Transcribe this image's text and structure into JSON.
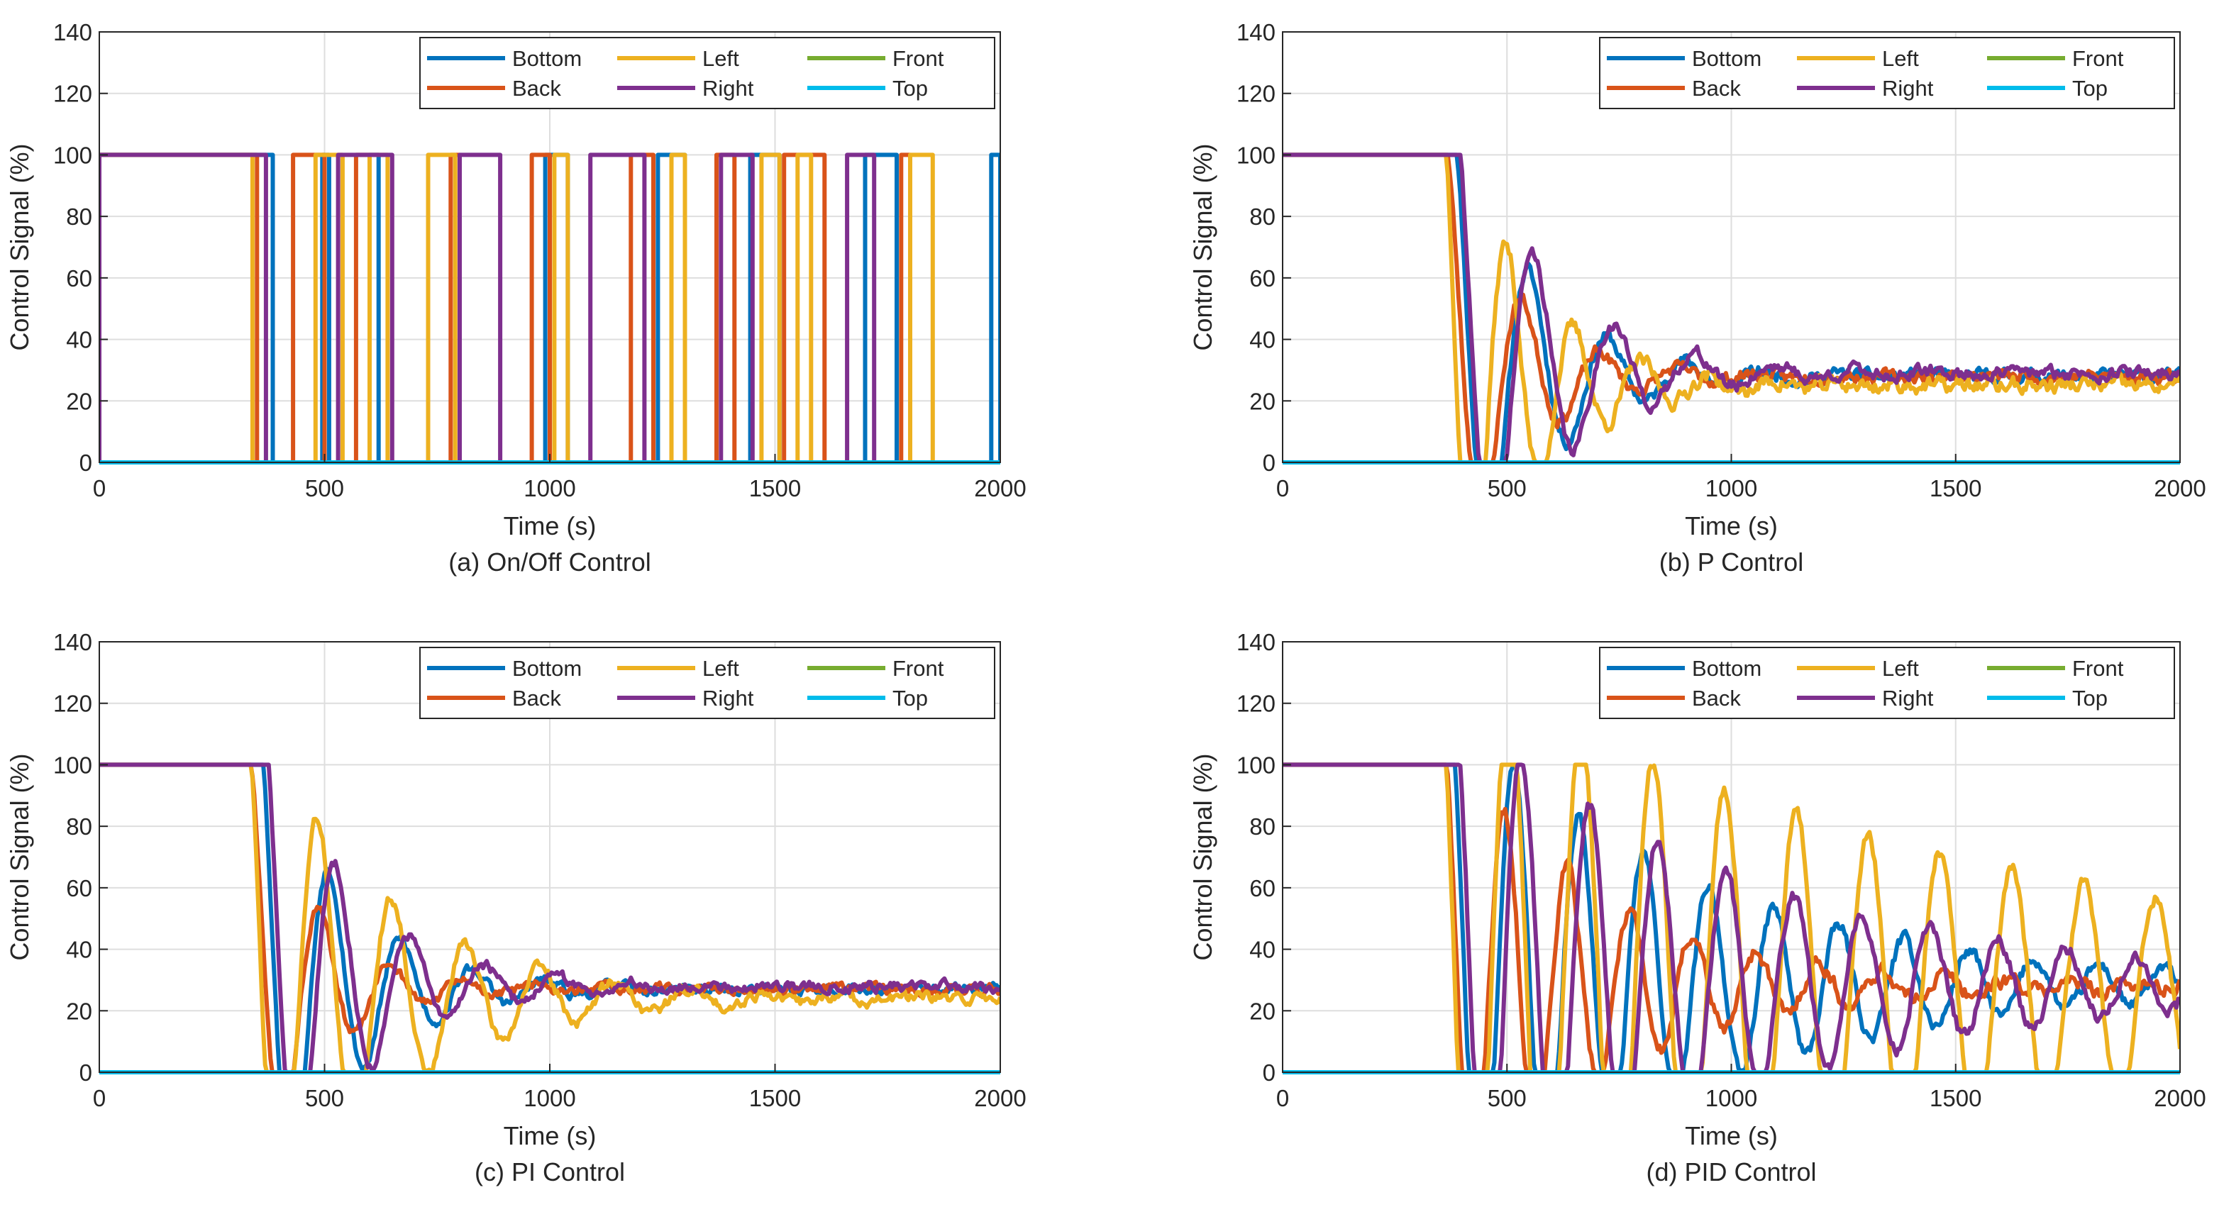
{
  "chart_data": [
    {
      "type": "line",
      "id": "a",
      "caption": "(a) On/Off Control",
      "xlabel": "Time (s)",
      "ylabel": "Control Signal (%)",
      "xlim": [
        0,
        2000
      ],
      "ylim": [
        0,
        140
      ],
      "xticks": [
        "0",
        "500",
        "1000",
        "1500",
        "2000"
      ],
      "yticks": [
        "0",
        "20",
        "40",
        "60",
        "80",
        "100",
        "120",
        "140"
      ],
      "grid": true,
      "legend_position": "top-right",
      "legend_columns": 3,
      "model": "onoff",
      "series": [
        {
          "name": "Bottom",
          "color": "#0072BD",
          "intervals": [
            [
              0,
              385
            ],
            [
              495,
              510
            ],
            [
              600,
              620
            ],
            [
              990,
              1040
            ],
            [
              1240,
              1300
            ],
            [
              1445,
              1510
            ],
            [
              1700,
              1770
            ],
            [
              1980,
              2000
            ]
          ]
        },
        {
          "name": "Back",
          "color": "#D95319",
          "intervals": [
            [
              0,
              350
            ],
            [
              430,
              500
            ],
            [
              570,
              600
            ],
            [
              780,
              800
            ],
            [
              960,
              1000
            ],
            [
              1180,
              1230
            ],
            [
              1370,
              1410
            ],
            [
              1520,
              1610
            ],
            [
              1780,
              1800
            ]
          ]
        },
        {
          "name": "Left",
          "color": "#EDB120",
          "intervals": [
            [
              0,
              340
            ],
            [
              480,
              540
            ],
            [
              600,
              640
            ],
            [
              730,
              790
            ],
            [
              1010,
              1040
            ],
            [
              1270,
              1300
            ],
            [
              1470,
              1510
            ],
            [
              1550,
              1580
            ],
            [
              1800,
              1850
            ]
          ]
        },
        {
          "name": "Right",
          "color": "#7E2F8E",
          "intervals": [
            [
              0,
              370
            ],
            [
              530,
              650
            ],
            [
              800,
              890
            ],
            [
              1090,
              1210
            ],
            [
              1380,
              1450
            ],
            [
              1660,
              1720
            ]
          ]
        },
        {
          "name": "Front",
          "color": "#77AC30",
          "values_const": 0
        },
        {
          "name": "Top",
          "color": "#00BCEB",
          "values_const": 0
        }
      ]
    },
    {
      "type": "line",
      "id": "b",
      "caption": "(b) P Control",
      "xlabel": "Time (s)",
      "ylabel": "Control Signal (%)",
      "xlim": [
        0,
        2000
      ],
      "ylim": [
        0,
        140
      ],
      "xticks": [
        "0",
        "500",
        "1000",
        "1500",
        "2000"
      ],
      "yticks": [
        "0",
        "20",
        "40",
        "60",
        "80",
        "100",
        "120",
        "140"
      ],
      "grid": true,
      "legend_position": "top-right",
      "legend_columns": 3,
      "model": "damped",
      "series": [
        {
          "name": "Bottom",
          "color": "#0072BD",
          "t0": 375,
          "ss": 28,
          "amp": 90,
          "tau": 180,
          "period": 175,
          "noise": 2.5,
          "seed": 11
        },
        {
          "name": "Back",
          "color": "#D95319",
          "t0": 360,
          "ss": 28,
          "amp": 80,
          "tau": 150,
          "period": 175,
          "noise": 2.5,
          "seed": 23
        },
        {
          "name": "Left",
          "color": "#EDB120",
          "t0": 350,
          "ss": 25,
          "amp": 110,
          "tau": 170,
          "period": 150,
          "noise": 3,
          "seed": 37
        },
        {
          "name": "Right",
          "color": "#7E2F8E",
          "t0": 380,
          "ss": 29,
          "amp": 95,
          "tau": 200,
          "period": 180,
          "noise": 2.5,
          "seed": 41
        },
        {
          "name": "Front",
          "color": "#77AC30",
          "values_const": 0
        },
        {
          "name": "Top",
          "color": "#00BCEB",
          "values_const": 0
        }
      ]
    },
    {
      "type": "line",
      "id": "c",
      "caption": "(c) PI Control",
      "xlabel": "Time (s)",
      "ylabel": "Control Signal (%)",
      "xlim": [
        0,
        2000
      ],
      "ylim": [
        0,
        140
      ],
      "xticks": [
        "0",
        "500",
        "1000",
        "1500",
        "2000"
      ],
      "yticks": [
        "0",
        "20",
        "40",
        "60",
        "80",
        "100",
        "120",
        "140"
      ],
      "grid": true,
      "legend_position": "top-right",
      "legend_columns": 3,
      "model": "damped",
      "series": [
        {
          "name": "Bottom",
          "color": "#0072BD",
          "t0": 350,
          "ss": 27,
          "amp": 95,
          "tau": 180,
          "period": 160,
          "noise": 2,
          "seed": 53
        },
        {
          "name": "Back",
          "color": "#D95319",
          "t0": 330,
          "ss": 27,
          "amp": 80,
          "tau": 140,
          "period": 160,
          "noise": 2,
          "seed": 61
        },
        {
          "name": "Left",
          "color": "#EDB120",
          "t0": 320,
          "ss": 24,
          "amp": 105,
          "tau": 280,
          "period": 165,
          "noise": 2.2,
          "seed": 71
        },
        {
          "name": "Right",
          "color": "#7E2F8E",
          "t0": 360,
          "ss": 28,
          "amp": 95,
          "tau": 190,
          "period": 165,
          "noise": 2,
          "seed": 83
        },
        {
          "name": "Front",
          "color": "#77AC30",
          "values_const": 0
        },
        {
          "name": "Top",
          "color": "#00BCEB",
          "values_const": 0
        }
      ]
    },
    {
      "type": "line",
      "id": "d",
      "caption": "(d) PID Control",
      "xlabel": "Time (s)",
      "ylabel": "Control Signal (%)",
      "xlim": [
        0,
        2000
      ],
      "ylim": [
        0,
        140
      ],
      "xticks": [
        "0",
        "500",
        "1000",
        "1500",
        "2000"
      ],
      "yticks": [
        "0",
        "20",
        "40",
        "60",
        "80",
        "100",
        "120",
        "140"
      ],
      "grid": true,
      "legend_position": "top-right",
      "legend_columns": 3,
      "model": "damped",
      "series": [
        {
          "name": "Bottom",
          "color": "#0072BD",
          "t0": 370,
          "ss": 28,
          "amp": 95,
          "tau": 550,
          "period": 145,
          "noise": 2.5,
          "seed": 97
        },
        {
          "name": "Back",
          "color": "#D95319",
          "t0": 355,
          "ss": 28,
          "amp": 85,
          "tau": 350,
          "period": 140,
          "noise": 3,
          "seed": 101
        },
        {
          "name": "Left",
          "color": "#EDB120",
          "t0": 345,
          "ss": 25,
          "amp": 110,
          "tau": 1300,
          "period": 160,
          "noise": 2.5,
          "seed": 113
        },
        {
          "name": "Right",
          "color": "#7E2F8E",
          "t0": 380,
          "ss": 28,
          "amp": 95,
          "tau": 650,
          "period": 152,
          "noise": 2.5,
          "seed": 127
        },
        {
          "name": "Front",
          "color": "#77AC30",
          "values_const": 0
        },
        {
          "name": "Top",
          "color": "#00BCEB",
          "values_const": 0
        }
      ]
    }
  ]
}
